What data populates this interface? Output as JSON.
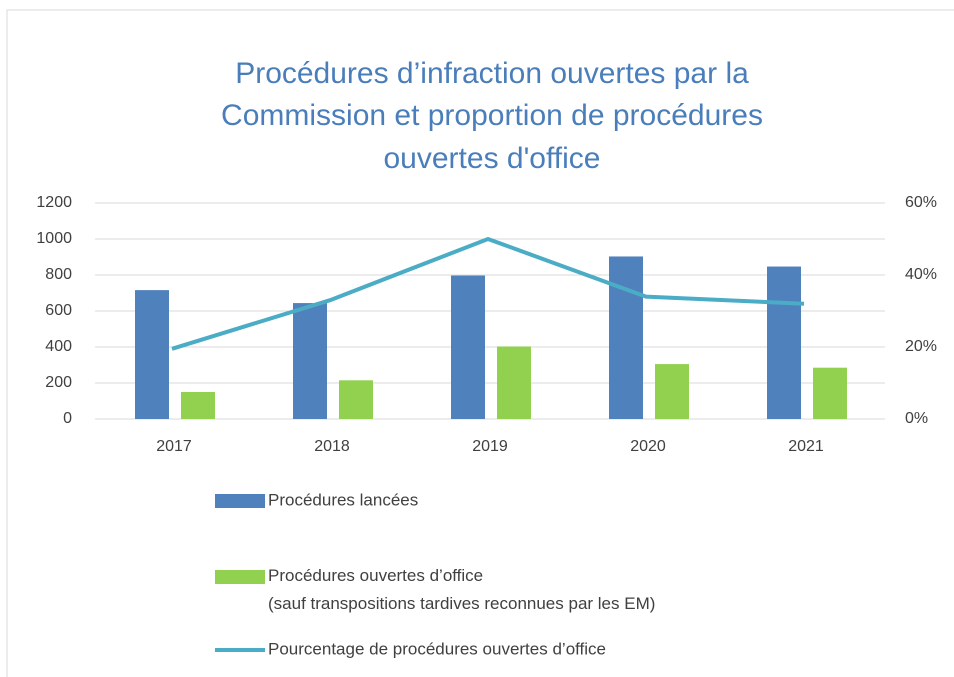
{
  "chart_data": {
    "type": "bar",
    "title": [
      "Procédures d’infraction ouvertes par la",
      "Commission et proportion de procédures",
      "ouvertes d'office"
    ],
    "categories": [
      "2017",
      "2018",
      "2019",
      "2020",
      "2021"
    ],
    "series": [
      {
        "name": "Procédures lancées",
        "color": "#4f81bd",
        "type": "bar",
        "values": [
          716,
          644,
          797,
          903,
          847
        ]
      },
      {
        "name": "Procédures ouvertes d’office\n(sauf transpositions tardives reconnues par les EM)",
        "color": "#92d050",
        "type": "bar",
        "values": [
          150,
          215,
          403,
          305,
          285
        ]
      },
      {
        "name": "Pourcentage de procédures ouvertes d’office",
        "color": "#4bacc6",
        "type": "line",
        "axis": "y2",
        "values": [
          19.5,
          33,
          50,
          34,
          32
        ]
      }
    ],
    "ylim": [
      0,
      1200
    ],
    "yticks": [
      0,
      200,
      400,
      600,
      800,
      1000,
      1200
    ],
    "y2lim": [
      0,
      60
    ],
    "y2ticks": [
      {
        "value": 0,
        "label": "0%"
      },
      {
        "value": 20,
        "label": "20%"
      },
      {
        "value": 40,
        "label": "40%"
      },
      {
        "value": 60,
        "label": "60%"
      }
    ],
    "grid": true,
    "legend": "bottom"
  }
}
